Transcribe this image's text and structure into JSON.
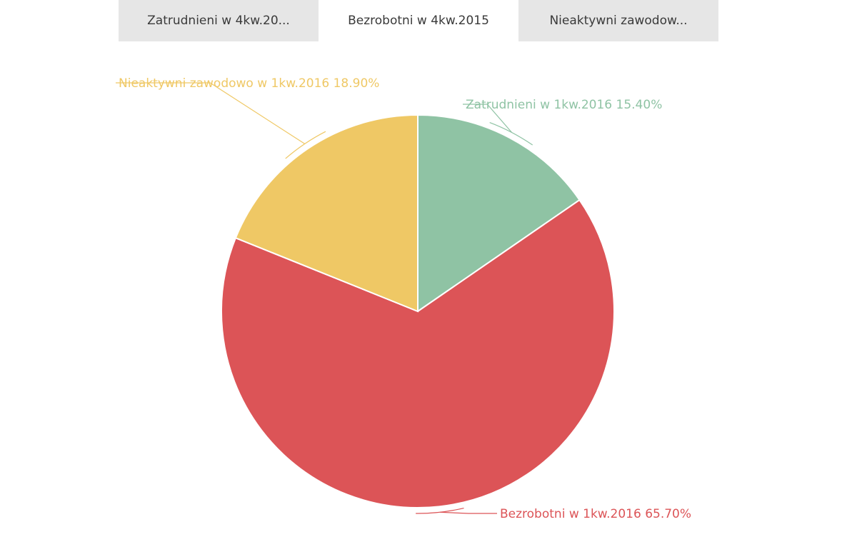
{
  "tabs": [
    {
      "label": "Zatrudnieni w 4kw.20...",
      "active": false
    },
    {
      "label": "Bezrobotni w 4kw.2015",
      "active": true
    },
    {
      "label": "Nieaktywni zawodow...",
      "active": false
    }
  ],
  "chart_data": {
    "type": "pie",
    "slices": [
      {
        "label": "Zatrudnieni w 1kw.2016",
        "value": 15.4,
        "value_label": "15.40%",
        "color": "#8fc3a4"
      },
      {
        "label": "Bezrobotni w 1kw.2016",
        "value": 65.7,
        "value_label": "65.70%",
        "color": "#dc5457"
      },
      {
        "label": "Nieaktywni zawodowo w 1kw.2016",
        "value": 18.9,
        "value_label": "18.90%",
        "color": "#efc865"
      }
    ],
    "start_angle": "12 o'clock",
    "direction": "clockwise"
  }
}
